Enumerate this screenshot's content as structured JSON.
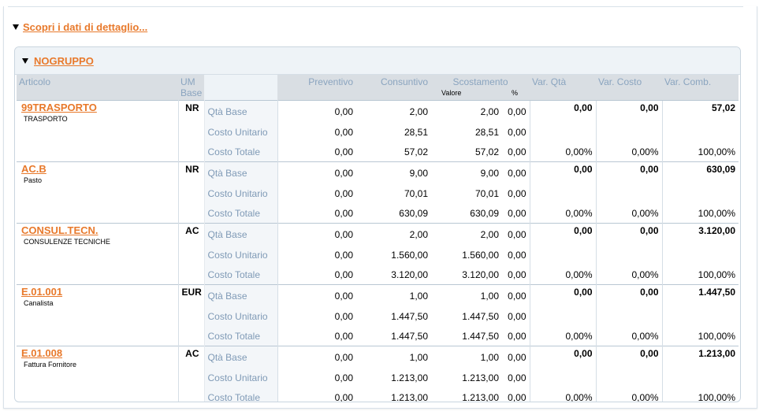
{
  "detail": {
    "label": "Scopri i dati di dettaglio..."
  },
  "group": {
    "label": "NOGRUPPO"
  },
  "columns": {
    "articolo": "Articolo",
    "um_line1": "UM",
    "um_line2": "Base",
    "preventivo": "Preventivo",
    "consuntivo": "Consuntivo",
    "scostamento": "Scostamento",
    "valore": "Valore",
    "perc": "%",
    "var_qta": "Var. Qtà",
    "var_costo": "Var. Costo",
    "var_comb": "Var. Comb."
  },
  "row_labels": [
    "Qtà Base",
    "Costo Unitario",
    "Costo Totale"
  ],
  "items": [
    {
      "code": "99TRASPORTO",
      "desc": "TRASPORTO",
      "um": "NR",
      "rows": [
        {
          "preventivo": "0,00",
          "consuntivo": "2,00",
          "valore": "2,00",
          "perc": "0,00"
        },
        {
          "preventivo": "0,00",
          "consuntivo": "28,51",
          "valore": "28,51",
          "perc": "0,00"
        },
        {
          "preventivo": "0,00",
          "consuntivo": "57,02",
          "valore": "57,02",
          "perc": "0,00"
        }
      ],
      "var": {
        "qta": "0,00",
        "costo": "0,00",
        "comb": "57,02"
      },
      "var_perc": {
        "qta": "0,00%",
        "costo": "0,00%",
        "comb": "100,00%"
      }
    },
    {
      "code": "AC.B",
      "desc": "Pasto",
      "um": "NR",
      "rows": [
        {
          "preventivo": "0,00",
          "consuntivo": "9,00",
          "valore": "9,00",
          "perc": "0,00"
        },
        {
          "preventivo": "0,00",
          "consuntivo": "70,01",
          "valore": "70,01",
          "perc": "0,00"
        },
        {
          "preventivo": "0,00",
          "consuntivo": "630,09",
          "valore": "630,09",
          "perc": "0,00"
        }
      ],
      "var": {
        "qta": "0,00",
        "costo": "0,00",
        "comb": "630,09"
      },
      "var_perc": {
        "qta": "0,00%",
        "costo": "0,00%",
        "comb": "100,00%"
      }
    },
    {
      "code": "CONSUL.TECN.",
      "desc": "CONSULENZE TECNICHE",
      "um": "AC",
      "rows": [
        {
          "preventivo": "0,00",
          "consuntivo": "2,00",
          "valore": "2,00",
          "perc": "0,00"
        },
        {
          "preventivo": "0,00",
          "consuntivo": "1.560,00",
          "valore": "1.560,00",
          "perc": "0,00"
        },
        {
          "preventivo": "0,00",
          "consuntivo": "3.120,00",
          "valore": "3.120,00",
          "perc": "0,00"
        }
      ],
      "var": {
        "qta": "0,00",
        "costo": "0,00",
        "comb": "3.120,00"
      },
      "var_perc": {
        "qta": "0,00%",
        "costo": "0,00%",
        "comb": "100,00%"
      }
    },
    {
      "code": "E.01.001",
      "desc": "Canalista",
      "um": "EUR",
      "rows": [
        {
          "preventivo": "0,00",
          "consuntivo": "1,00",
          "valore": "1,00",
          "perc": "0,00"
        },
        {
          "preventivo": "0,00",
          "consuntivo": "1.447,50",
          "valore": "1.447,50",
          "perc": "0,00"
        },
        {
          "preventivo": "0,00",
          "consuntivo": "1.447,50",
          "valore": "1.447,50",
          "perc": "0,00"
        }
      ],
      "var": {
        "qta": "0,00",
        "costo": "0,00",
        "comb": "1.447,50"
      },
      "var_perc": {
        "qta": "0,00%",
        "costo": "0,00%",
        "comb": "100,00%"
      }
    },
    {
      "code": "E.01.008",
      "desc": "Fattura Fornitore",
      "um": "AC",
      "rows": [
        {
          "preventivo": "0,00",
          "consuntivo": "1,00",
          "valore": "1,00",
          "perc": "0,00"
        },
        {
          "preventivo": "0,00",
          "consuntivo": "1.213,00",
          "valore": "1.213,00",
          "perc": "0,00"
        },
        {
          "preventivo": "0,00",
          "consuntivo": "1.213,00",
          "valore": "1.213,00",
          "perc": "0,00"
        }
      ],
      "var": {
        "qta": "0,00",
        "costo": "0,00",
        "comb": "1.213,00"
      },
      "var_perc": {
        "qta": "0,00%",
        "costo": "0,00%",
        "comb": "100,00%"
      }
    }
  ]
}
